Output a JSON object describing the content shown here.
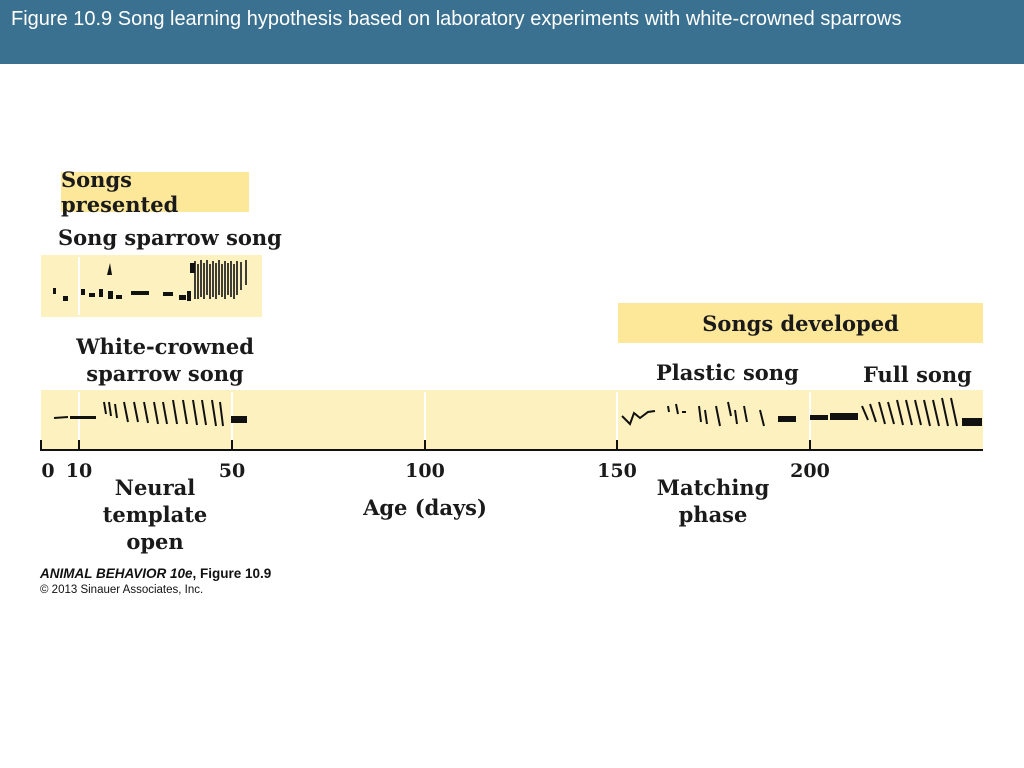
{
  "slide_title": "Figure 10.9  Song learning hypothesis based on laboratory experiments with white-crowned sparrows",
  "songs_presented": {
    "header": "Songs presented",
    "song_sparrow_label": "Song sparrow song",
    "white_crowned_label_line1": "White-crowned",
    "white_crowned_label_line2": "sparrow song"
  },
  "songs_developed": {
    "header": "Songs developed",
    "plastic_label": "Plastic song",
    "full_label": "Full song"
  },
  "axis": {
    "ticks": [
      "0",
      "10",
      "50",
      "100",
      "150",
      "200"
    ],
    "label": "Age (days)"
  },
  "phases": {
    "neural_line1": "Neural",
    "neural_line2": "template",
    "neural_line3": "open",
    "matching_line1": "Matching",
    "matching_line2": "phase"
  },
  "caption": {
    "book": "ANIMAL BEHAVIOR 10e",
    "figure": ", Figure 10.9",
    "copyright": "© 2013 Sinauer Associates, Inc."
  },
  "colors": {
    "title_bar": "#3a7090",
    "header_fill": "#fde89a",
    "band_fill": "#fdf2bf"
  }
}
